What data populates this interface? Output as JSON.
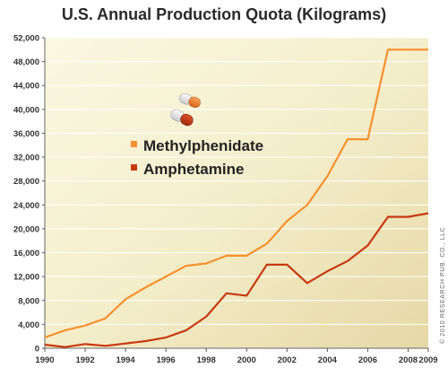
{
  "chart_data": {
    "type": "line",
    "title": "U.S. Annual Production Quota (Kilograms)",
    "xlabel": "",
    "ylabel": "",
    "x": [
      1990,
      1991,
      1992,
      1993,
      1994,
      1995,
      1996,
      1997,
      1998,
      1999,
      2000,
      2001,
      2002,
      2003,
      2004,
      2005,
      2006,
      2007,
      2008,
      2009
    ],
    "xlim": [
      1990,
      2009
    ],
    "ylim": [
      0,
      52000
    ],
    "x_ticks": [
      1990,
      1992,
      1994,
      1996,
      1998,
      2000,
      2002,
      2004,
      2006,
      2008,
      2009
    ],
    "y_ticks": [
      0,
      4000,
      8000,
      12000,
      16000,
      20000,
      24000,
      28000,
      32000,
      36000,
      40000,
      44000,
      48000,
      52000
    ],
    "x_tick_labels": [
      "1990",
      "1992",
      "1994",
      "1996",
      "1998",
      "2000",
      "2002",
      "2004",
      "2006",
      "2008",
      "2009"
    ],
    "y_tick_labels": [
      "0",
      "4,000",
      "8,000",
      "12,000",
      "16,000",
      "20,000",
      "24,000",
      "28,000",
      "32,000",
      "36,000",
      "40,000",
      "44,000",
      "48,000",
      "52,000"
    ],
    "grid": "horizontal",
    "legend_position": "center-left",
    "series": [
      {
        "name": "Methylphenidate",
        "color": "#f7902e",
        "values": [
          1800,
          3000,
          3800,
          5000,
          8200,
          10200,
          12000,
          13800,
          14200,
          15500,
          15500,
          17500,
          21300,
          24000,
          28800,
          35000,
          35000,
          50000,
          50000,
          50000
        ]
      },
      {
        "name": "Amphetamine",
        "color": "#c8390f",
        "values": [
          600,
          200,
          700,
          400,
          800,
          1200,
          1800,
          3000,
          5300,
          9200,
          8800,
          14000,
          14000,
          10900,
          12900,
          14600,
          17200,
          22000,
          22000,
          22600
        ]
      }
    ]
  },
  "credit_text": "© 2010 RESEARCH PUB. CO., LLC",
  "legend_icon": "capsule-icon"
}
